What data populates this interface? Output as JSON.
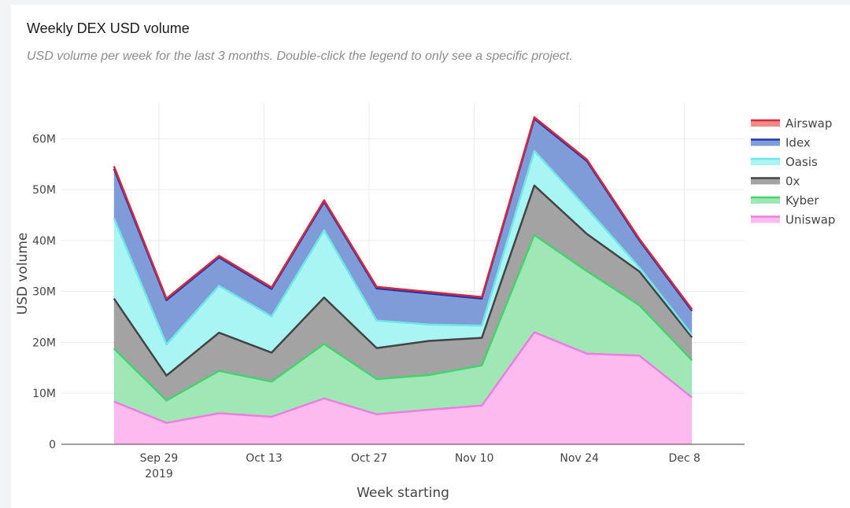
{
  "title": "Weekly DEX USD volume",
  "subtitle": "USD volume per week for the last 3 months. Double-click the legend to only see a specific project.",
  "chart_data": {
    "type": "area",
    "stacked": true,
    "xlabel": "Week starting",
    "ylabel": "USD volume",
    "ylim": [
      0,
      67000000
    ],
    "grid": true,
    "legend_position": "right",
    "x": [
      "2019-09-23",
      "2019-09-30",
      "2019-10-07",
      "2019-10-14",
      "2019-10-21",
      "2019-10-28",
      "2019-11-04",
      "2019-11-11",
      "2019-11-18",
      "2019-11-25",
      "2019-12-02",
      "2019-12-09"
    ],
    "x_tick_labels": [
      {
        "date": "2019-09-29",
        "label": "Sep 29",
        "sublabel": "2019"
      },
      {
        "date": "2019-10-13",
        "label": "Oct 13",
        "sublabel": ""
      },
      {
        "date": "2019-10-27",
        "label": "Oct 27",
        "sublabel": ""
      },
      {
        "date": "2019-11-10",
        "label": "Nov 10",
        "sublabel": ""
      },
      {
        "date": "2019-11-24",
        "label": "Nov 24",
        "sublabel": ""
      },
      {
        "date": "2019-12-08",
        "label": "Dec 8",
        "sublabel": ""
      }
    ],
    "y_ticks": [
      {
        "value": 0,
        "label": "0"
      },
      {
        "value": 10000000,
        "label": "10M"
      },
      {
        "value": 20000000,
        "label": "20M"
      },
      {
        "value": 30000000,
        "label": "30M"
      },
      {
        "value": 40000000,
        "label": "40M"
      },
      {
        "value": 50000000,
        "label": "50M"
      },
      {
        "value": 60000000,
        "label": "60M"
      }
    ],
    "series": [
      {
        "name": "Uniswap",
        "line_color": "#f07ce0",
        "fill_color": "#fcbaef",
        "values": [
          8400000,
          4200000,
          6100000,
          5400000,
          9000000,
          5900000,
          6800000,
          7600000,
          22000000,
          17800000,
          17400000,
          9200000
        ]
      },
      {
        "name": "Kyber",
        "line_color": "#44d36e",
        "fill_color": "#9fe8b6",
        "values": [
          10400000,
          4400000,
          8300000,
          6900000,
          10700000,
          6900000,
          6800000,
          7900000,
          19100000,
          16200000,
          9900000,
          7300000
        ]
      },
      {
        "name": "0x",
        "line_color": "#444444",
        "fill_color": "#a3a3a3",
        "values": [
          9800000,
          4900000,
          7500000,
          5700000,
          9100000,
          6100000,
          6700000,
          5400000,
          9700000,
          7300000,
          6600000,
          4500000
        ]
      },
      {
        "name": "Oasis",
        "line_color": "#6fe6e6",
        "fill_color": "#a8f5f3",
        "values": [
          15800000,
          6100000,
          9200000,
          7100000,
          13200000,
          5400000,
          3200000,
          2400000,
          6800000,
          5000000,
          800000,
          500000
        ]
      },
      {
        "name": "Idex",
        "line_color": "#2238a8",
        "fill_color": "#7f9bd8",
        "values": [
          9700000,
          8700000,
          5600000,
          5400000,
          5600000,
          6300000,
          6100000,
          5300000,
          6300000,
          9300000,
          5300000,
          4700000
        ]
      },
      {
        "name": "Airswap",
        "line_color": "#d9283d",
        "fill_color": "#f08a8a",
        "values": [
          500000,
          300000,
          300000,
          300000,
          300000,
          300000,
          300000,
          300000,
          300000,
          300000,
          300000,
          300000
        ]
      }
    ],
    "legend_order": [
      "Airswap",
      "Idex",
      "Oasis",
      "0x",
      "Kyber",
      "Uniswap"
    ]
  }
}
